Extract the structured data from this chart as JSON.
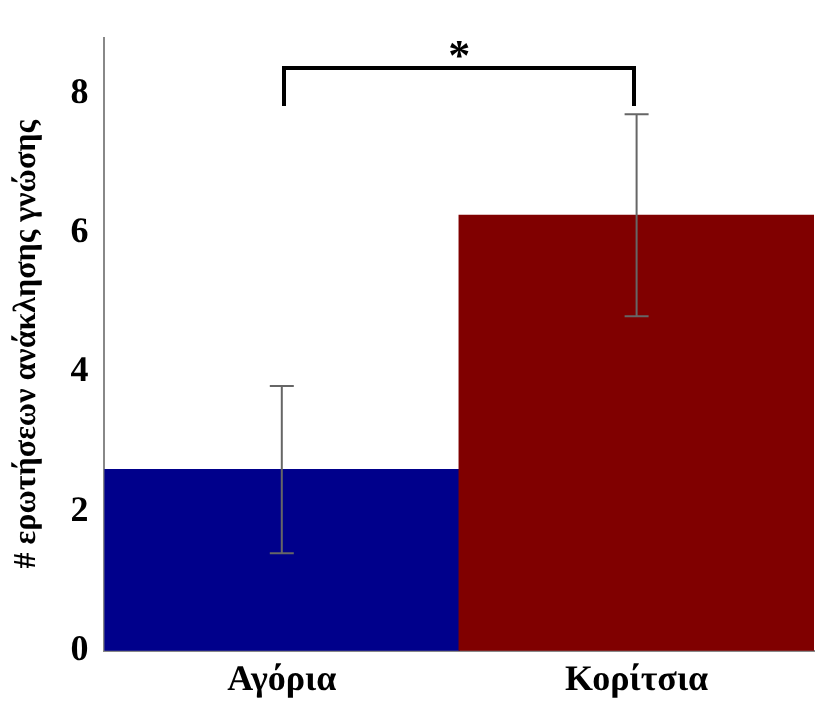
{
  "chart_data": {
    "type": "bar",
    "ylabel": "# ερωτήσεων ανάκλησης γνώσης",
    "categories": [
      "Αγόρια",
      "Κορίτσια"
    ],
    "values": [
      2.6,
      6.25
    ],
    "colors": [
      "#00008b",
      "#800000"
    ],
    "errors": [
      [
        1.4,
        3.8
      ],
      [
        4.8,
        7.7
      ]
    ],
    "ylim": [
      0,
      8.8
    ],
    "yticks": [
      0,
      2,
      4,
      6,
      8
    ],
    "grid": false,
    "legend": false,
    "annotations": [
      "*"
    ]
  }
}
